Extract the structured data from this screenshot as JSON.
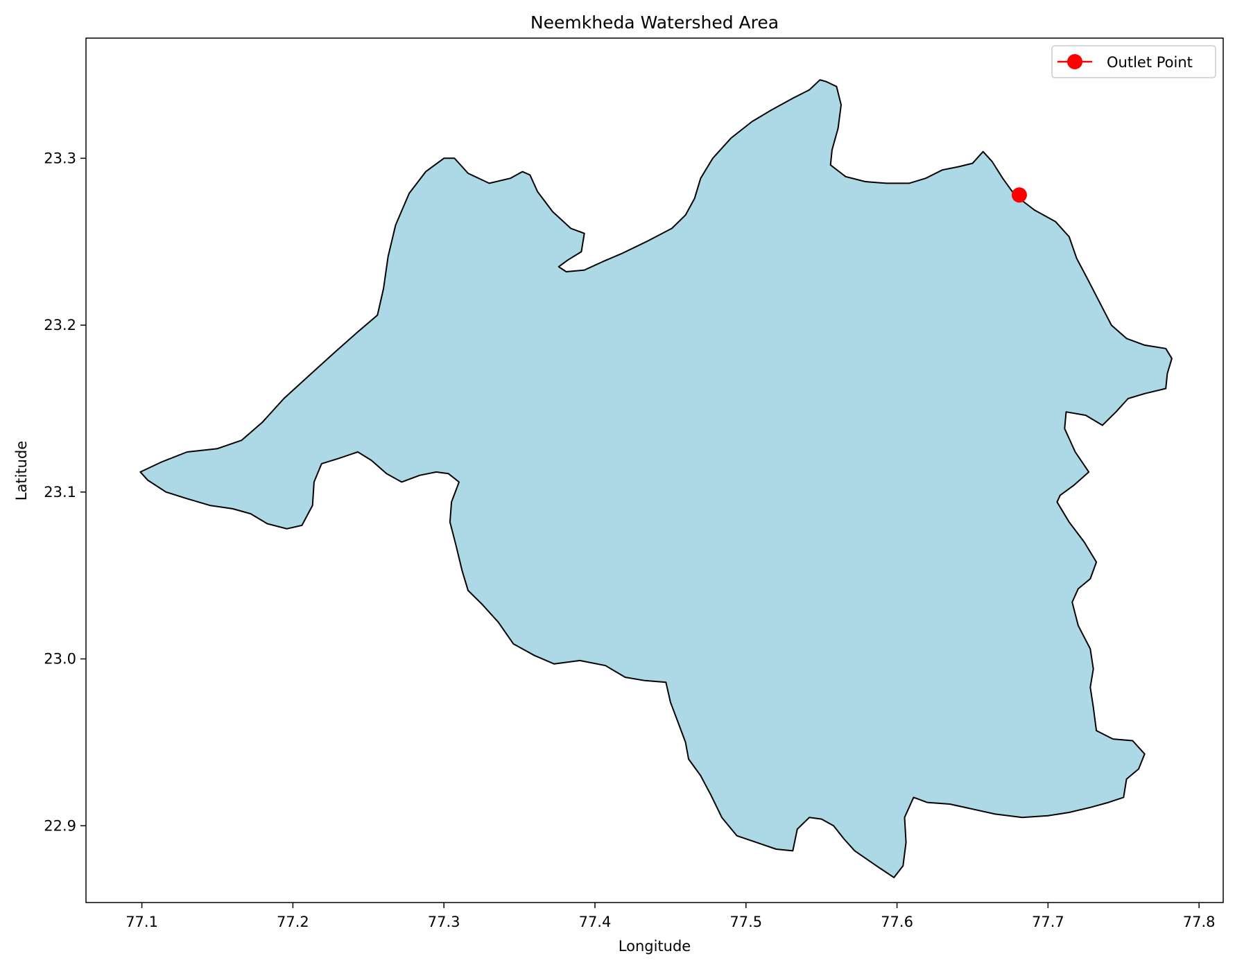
{
  "chart_data": {
    "type": "map",
    "title": "Neemkheda Watershed Area",
    "xlabel": "Longitude",
    "ylabel": "Latitude",
    "xlim": [
      77.063,
      77.816
    ],
    "ylim": [
      22.854,
      23.372
    ],
    "xticks": [
      77.1,
      77.2,
      77.3,
      77.4,
      77.5,
      77.6,
      77.7,
      77.8
    ],
    "xtick_labels": [
      "77.1",
      "77.2",
      "77.3",
      "77.4",
      "77.5",
      "77.6",
      "77.7",
      "77.8"
    ],
    "yticks": [
      22.9,
      23.0,
      23.1,
      23.2,
      23.3
    ],
    "ytick_labels": [
      "22.9",
      "23.0",
      "23.1",
      "23.2",
      "23.3"
    ],
    "grid": false,
    "legend": {
      "position": "top-right",
      "entries": [
        "Outlet Point"
      ]
    },
    "watershed": {
      "fill": "#add8e6",
      "edge": "#000000",
      "boundary": [
        [
          77.099,
          23.112
        ],
        [
          77.113,
          23.118
        ],
        [
          77.13,
          23.124
        ],
        [
          77.15,
          23.126
        ],
        [
          77.166,
          23.131
        ],
        [
          77.18,
          23.142
        ],
        [
          77.194,
          23.156
        ],
        [
          77.211,
          23.17
        ],
        [
          77.228,
          23.184
        ],
        [
          77.243,
          23.196
        ],
        [
          77.256,
          23.206
        ],
        [
          77.26,
          23.222
        ],
        [
          77.263,
          23.241
        ],
        [
          77.268,
          23.26
        ],
        [
          77.277,
          23.279
        ],
        [
          77.288,
          23.292
        ],
        [
          77.3,
          23.3
        ],
        [
          77.307,
          23.3
        ],
        [
          77.316,
          23.291
        ],
        [
          77.33,
          23.285
        ],
        [
          77.344,
          23.288
        ],
        [
          77.352,
          23.292
        ],
        [
          77.357,
          23.29
        ],
        [
          77.362,
          23.28
        ],
        [
          77.372,
          23.268
        ],
        [
          77.384,
          23.258
        ],
        [
          77.393,
          23.255
        ],
        [
          77.391,
          23.244
        ],
        [
          77.382,
          23.239
        ],
        [
          77.376,
          23.235
        ],
        [
          77.381,
          23.232
        ],
        [
          77.393,
          23.233
        ],
        [
          77.405,
          23.238
        ],
        [
          77.418,
          23.243
        ],
        [
          77.434,
          23.25
        ],
        [
          77.451,
          23.258
        ],
        [
          77.46,
          23.266
        ],
        [
          77.466,
          23.276
        ],
        [
          77.47,
          23.288
        ],
        [
          77.478,
          23.3
        ],
        [
          77.49,
          23.312
        ],
        [
          77.504,
          23.322
        ],
        [
          77.517,
          23.329
        ],
        [
          77.531,
          23.336
        ],
        [
          77.542,
          23.341
        ],
        [
          77.549,
          23.347
        ],
        [
          77.553,
          23.346
        ],
        [
          77.56,
          23.343
        ],
        [
          77.563,
          23.332
        ],
        [
          77.561,
          23.318
        ],
        [
          77.557,
          23.305
        ],
        [
          77.556,
          23.296
        ],
        [
          77.566,
          23.289
        ],
        [
          77.579,
          23.286
        ],
        [
          77.593,
          23.285
        ],
        [
          77.608,
          23.285
        ],
        [
          77.619,
          23.288
        ],
        [
          77.63,
          23.293
        ],
        [
          77.641,
          23.295
        ],
        [
          77.65,
          23.297
        ],
        [
          77.657,
          23.304
        ],
        [
          77.663,
          23.298
        ],
        [
          77.67,
          23.288
        ],
        [
          77.678,
          23.278
        ],
        [
          77.691,
          23.269
        ],
        [
          77.705,
          23.262
        ],
        [
          77.714,
          23.253
        ],
        [
          77.719,
          23.24
        ],
        [
          77.726,
          23.228
        ],
        [
          77.734,
          23.214
        ],
        [
          77.742,
          23.2
        ],
        [
          77.752,
          23.192
        ],
        [
          77.764,
          23.188
        ],
        [
          77.778,
          23.186
        ],
        [
          77.782,
          23.18
        ],
        [
          77.779,
          23.171
        ],
        [
          77.778,
          23.162
        ],
        [
          77.764,
          23.159
        ],
        [
          77.753,
          23.156
        ],
        [
          77.745,
          23.148
        ],
        [
          77.736,
          23.14
        ],
        [
          77.725,
          23.146
        ],
        [
          77.712,
          23.148
        ],
        [
          77.711,
          23.138
        ],
        [
          77.718,
          23.124
        ],
        [
          77.727,
          23.112
        ],
        [
          77.717,
          23.104
        ],
        [
          77.708,
          23.098
        ],
        [
          77.706,
          23.094
        ],
        [
          77.714,
          23.082
        ],
        [
          77.724,
          23.07
        ],
        [
          77.732,
          23.058
        ],
        [
          77.728,
          23.048
        ],
        [
          77.72,
          23.042
        ],
        [
          77.716,
          23.034
        ],
        [
          77.72,
          23.02
        ],
        [
          77.728,
          23.006
        ],
        [
          77.73,
          22.994
        ],
        [
          77.728,
          22.983
        ],
        [
          77.73,
          22.971
        ],
        [
          77.732,
          22.957
        ],
        [
          77.743,
          22.952
        ],
        [
          77.756,
          22.951
        ],
        [
          77.764,
          22.943
        ],
        [
          77.76,
          22.934
        ],
        [
          77.752,
          22.928
        ],
        [
          77.75,
          22.917
        ],
        [
          77.74,
          22.914
        ],
        [
          77.728,
          22.911
        ],
        [
          77.714,
          22.908
        ],
        [
          77.7,
          22.906
        ],
        [
          77.683,
          22.905
        ],
        [
          77.665,
          22.907
        ],
        [
          77.65,
          22.91
        ],
        [
          77.635,
          22.913
        ],
        [
          77.62,
          22.914
        ],
        [
          77.611,
          22.917
        ],
        [
          77.605,
          22.905
        ],
        [
          77.606,
          22.89
        ],
        [
          77.604,
          22.876
        ],
        [
          77.598,
          22.869
        ],
        [
          77.588,
          22.875
        ],
        [
          77.58,
          22.88
        ],
        [
          77.572,
          22.885
        ],
        [
          77.565,
          22.892
        ],
        [
          77.558,
          22.9
        ],
        [
          77.55,
          22.904
        ],
        [
          77.542,
          22.905
        ],
        [
          77.534,
          22.898
        ],
        [
          77.531,
          22.885
        ],
        [
          77.52,
          22.886
        ],
        [
          77.507,
          22.89
        ],
        [
          77.494,
          22.894
        ],
        [
          77.484,
          22.905
        ],
        [
          77.477,
          22.918
        ],
        [
          77.47,
          22.93
        ],
        [
          77.462,
          22.94
        ],
        [
          77.46,
          22.95
        ],
        [
          77.455,
          22.962
        ],
        [
          77.45,
          22.974
        ],
        [
          77.447,
          22.986
        ],
        [
          77.433,
          22.987
        ],
        [
          77.42,
          22.989
        ],
        [
          77.407,
          22.996
        ],
        [
          77.39,
          22.999
        ],
        [
          77.373,
          22.997
        ],
        [
          77.36,
          23.002
        ],
        [
          77.346,
          23.009
        ],
        [
          77.336,
          23.022
        ],
        [
          77.325,
          23.033
        ],
        [
          77.316,
          23.041
        ],
        [
          77.312,
          23.053
        ],
        [
          77.308,
          23.068
        ],
        [
          77.304,
          23.082
        ],
        [
          77.305,
          23.094
        ],
        [
          77.31,
          23.106
        ],
        [
          77.303,
          23.111
        ],
        [
          77.295,
          23.112
        ],
        [
          77.284,
          23.11
        ],
        [
          77.272,
          23.106
        ],
        [
          77.262,
          23.111
        ],
        [
          77.252,
          23.119
        ],
        [
          77.243,
          23.124
        ],
        [
          77.23,
          23.12
        ],
        [
          77.219,
          23.117
        ],
        [
          77.214,
          23.106
        ],
        [
          77.213,
          23.092
        ],
        [
          77.206,
          23.08
        ],
        [
          77.196,
          23.078
        ],
        [
          77.183,
          23.081
        ],
        [
          77.172,
          23.087
        ],
        [
          77.16,
          23.09
        ],
        [
          77.145,
          23.092
        ],
        [
          77.13,
          23.096
        ],
        [
          77.116,
          23.1
        ],
        [
          77.104,
          23.107
        ]
      ]
    },
    "series": [
      {
        "name": "Outlet Point",
        "type": "point",
        "color": "#ff0000",
        "x": [
          77.681
        ],
        "y": [
          23.278
        ]
      }
    ]
  }
}
